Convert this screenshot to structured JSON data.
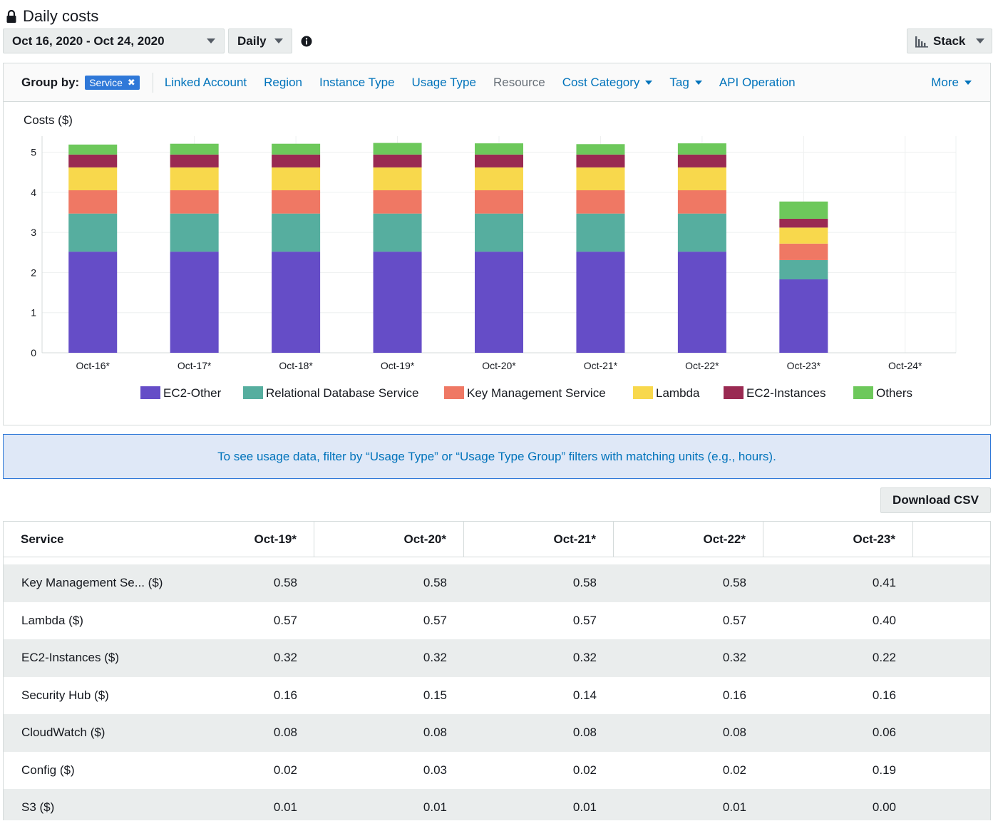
{
  "page_title": "Daily costs",
  "controls": {
    "date_range": "Oct 16, 2020 - Oct 24, 2020",
    "granularity": "Daily",
    "chart_style": "Stack"
  },
  "group_by": {
    "label": "Group by:",
    "selected": "Service",
    "options": [
      {
        "label": "Linked Account",
        "enabled": true,
        "dropdown": false
      },
      {
        "label": "Region",
        "enabled": true,
        "dropdown": false
      },
      {
        "label": "Instance Type",
        "enabled": true,
        "dropdown": false
      },
      {
        "label": "Usage Type",
        "enabled": true,
        "dropdown": false
      },
      {
        "label": "Resource",
        "enabled": false,
        "dropdown": false
      },
      {
        "label": "Cost Category",
        "enabled": true,
        "dropdown": true
      },
      {
        "label": "Tag",
        "enabled": true,
        "dropdown": true
      },
      {
        "label": "API Operation",
        "enabled": true,
        "dropdown": false
      }
    ],
    "more": "More"
  },
  "chart_data": {
    "type": "bar",
    "stacked": true,
    "ylabel": "Costs ($)",
    "ylim": [
      0,
      5.4
    ],
    "yticks": [
      0,
      1,
      2,
      3,
      4,
      5
    ],
    "grid": true,
    "legend_position": "bottom",
    "categories": [
      "Oct-16*",
      "Oct-17*",
      "Oct-18*",
      "Oct-19*",
      "Oct-20*",
      "Oct-21*",
      "Oct-22*",
      "Oct-23*",
      "Oct-24*"
    ],
    "series": [
      {
        "name": "EC2-Other",
        "color": "#654dc7",
        "values": [
          2.52,
          2.52,
          2.52,
          2.52,
          2.52,
          2.52,
          2.52,
          1.83,
          0
        ]
      },
      {
        "name": "Relational Database Service",
        "color": "#56ae9f",
        "values": [
          0.95,
          0.95,
          0.95,
          0.95,
          0.95,
          0.95,
          0.95,
          0.48,
          0
        ]
      },
      {
        "name": "Key Management Service",
        "color": "#ef7864",
        "values": [
          0.58,
          0.58,
          0.58,
          0.58,
          0.58,
          0.58,
          0.58,
          0.41,
          0
        ]
      },
      {
        "name": "Lambda",
        "color": "#f8d84c",
        "values": [
          0.57,
          0.57,
          0.57,
          0.57,
          0.57,
          0.57,
          0.57,
          0.4,
          0
        ]
      },
      {
        "name": "EC2-Instances",
        "color": "#9a2a52",
        "values": [
          0.32,
          0.32,
          0.32,
          0.32,
          0.32,
          0.32,
          0.32,
          0.22,
          0
        ]
      },
      {
        "name": "Others",
        "color": "#6dc85b",
        "values": [
          0.25,
          0.27,
          0.27,
          0.29,
          0.28,
          0.26,
          0.28,
          0.43,
          0
        ]
      }
    ]
  },
  "notice": "To see usage data, filter by “Usage Type” or “Usage Type Group” filters with matching units (e.g., hours).",
  "download_button": "Download CSV",
  "table": {
    "columns": [
      "Service",
      "Oct-19*",
      "Oct-20*",
      "Oct-21*",
      "Oct-22*",
      "Oct-23*"
    ],
    "rows": [
      [
        "Key Management Se... ($)",
        "0.58",
        "0.58",
        "0.58",
        "0.58",
        "0.41"
      ],
      [
        "Lambda ($)",
        "0.57",
        "0.57",
        "0.57",
        "0.57",
        "0.40"
      ],
      [
        "EC2-Instances ($)",
        "0.32",
        "0.32",
        "0.32",
        "0.32",
        "0.22"
      ],
      [
        "Security Hub ($)",
        "0.16",
        "0.15",
        "0.14",
        "0.16",
        "0.16"
      ],
      [
        "CloudWatch ($)",
        "0.08",
        "0.08",
        "0.08",
        "0.08",
        "0.06"
      ],
      [
        "Config ($)",
        "0.02",
        "0.03",
        "0.02",
        "0.02",
        "0.19"
      ],
      [
        "S3 ($)",
        "0.01",
        "0.01",
        "0.01",
        "0.01",
        "0.00"
      ]
    ]
  }
}
